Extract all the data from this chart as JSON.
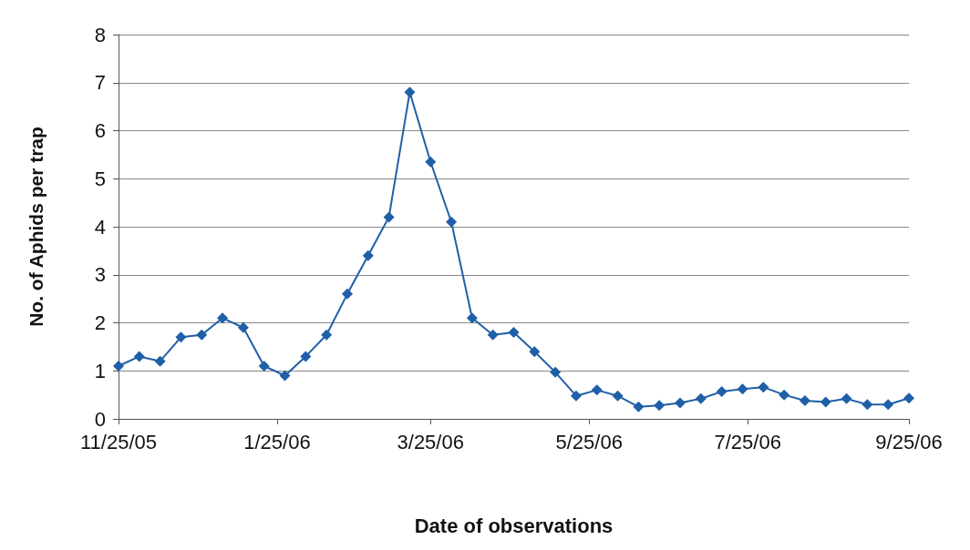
{
  "chart_data": {
    "type": "line",
    "xlabel": "Date of observations",
    "ylabel": "No. of Aphids per trap",
    "x": [
      "2005-11-25",
      "2005-12-03",
      "2005-12-11",
      "2005-12-19",
      "2005-12-27",
      "2006-01-04",
      "2006-01-12",
      "2006-01-20",
      "2006-01-28",
      "2006-02-05",
      "2006-02-13",
      "2006-02-21",
      "2006-03-01",
      "2006-03-09",
      "2006-03-17",
      "2006-03-25",
      "2006-04-02",
      "2006-04-10",
      "2006-04-18",
      "2006-04-26",
      "2006-05-04",
      "2006-05-12",
      "2006-05-20",
      "2006-05-28",
      "2006-06-05",
      "2006-06-13",
      "2006-06-21",
      "2006-06-29",
      "2006-07-07",
      "2006-07-15",
      "2006-07-23",
      "2006-07-31",
      "2006-08-08",
      "2006-08-16",
      "2006-08-24",
      "2006-09-01",
      "2006-09-09",
      "2006-09-17",
      "2006-09-25"
    ],
    "series": [
      {
        "color": "#1f5fa8",
        "values": [
          1.1,
          1.3,
          1.2,
          1.7,
          1.75,
          2.1,
          1.9,
          1.1,
          0.9,
          1.3,
          1.75,
          2.6,
          3.4,
          4.2,
          6.8,
          5.35,
          4.1,
          2.1,
          1.75,
          1.8,
          1.4,
          0.97,
          0.48,
          0.6,
          0.48,
          0.25,
          0.28,
          0.33,
          0.42,
          0.57,
          0.62,
          0.66,
          0.5,
          0.38,
          0.35,
          0.42,
          0.3,
          0.3,
          0.43
        ]
      }
    ],
    "xlim": [
      "2005-11-25",
      "2006-09-25"
    ],
    "xticks": [
      {
        "value": "2005-11-25",
        "label": "11/25/05"
      },
      {
        "value": "2006-01-25",
        "label": "1/25/06"
      },
      {
        "value": "2006-03-25",
        "label": "3/25/06"
      },
      {
        "value": "2006-05-25",
        "label": "5/25/06"
      },
      {
        "value": "2006-07-25",
        "label": "7/25/06"
      },
      {
        "value": "2006-09-25",
        "label": "9/25/06"
      }
    ],
    "ylim": [
      0,
      8
    ],
    "yticks": [
      0,
      1,
      2,
      3,
      4,
      5,
      6,
      7,
      8
    ],
    "grid": "y",
    "marker": "diamond",
    "line_style": "solid"
  }
}
